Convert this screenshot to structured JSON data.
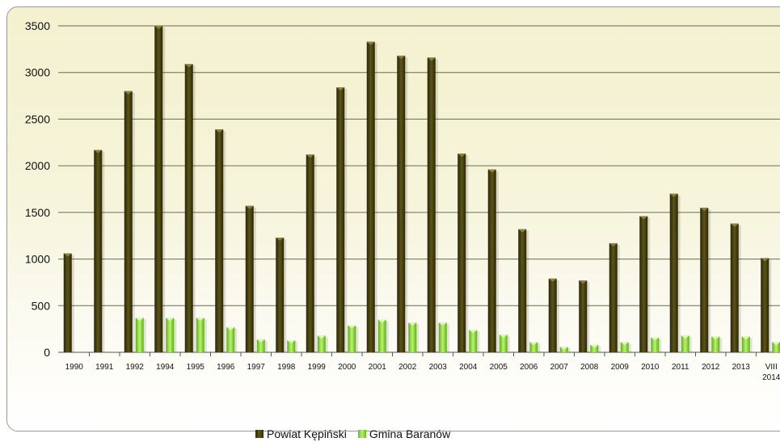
{
  "chart_data": {
    "type": "bar",
    "title": "",
    "xlabel": "",
    "ylabel": "",
    "ylim": [
      0,
      3500
    ],
    "yticks": [
      0,
      500,
      1000,
      1500,
      2000,
      2500,
      3000,
      3500
    ],
    "grid": true,
    "legend_position": "bottom",
    "categories": [
      "1990",
      "1991",
      "1992",
      "1994",
      "1995",
      "1996",
      "1997",
      "1998",
      "1999",
      "2000",
      "2001",
      "2002",
      "2003",
      "2004",
      "2005",
      "2006",
      "2007",
      "2008",
      "2009",
      "2010",
      "2011",
      "2012",
      "2013",
      "VIII 2014"
    ],
    "series": [
      {
        "name": "Powiat Kępiński",
        "color": "#3f3a10",
        "values": [
          1060,
          2170,
          2800,
          3500,
          3090,
          2390,
          1570,
          1230,
          2120,
          2840,
          3330,
          3180,
          3160,
          2130,
          1960,
          1320,
          790,
          770,
          1170,
          1460,
          1700,
          1550,
          1380,
          1010
        ]
      },
      {
        "name": "Gmina Baranów",
        "color": "#8fdc3a",
        "values": [
          0,
          0,
          370,
          370,
          370,
          270,
          140,
          130,
          180,
          290,
          350,
          320,
          320,
          240,
          190,
          110,
          60,
          80,
          110,
          160,
          180,
          170,
          170,
          110
        ]
      }
    ]
  }
}
